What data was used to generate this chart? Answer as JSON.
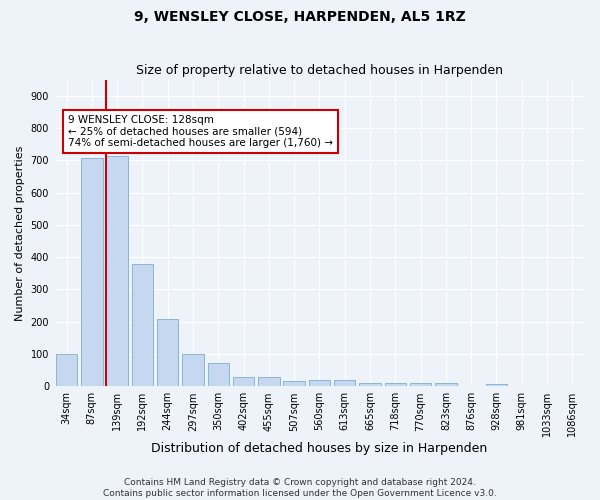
{
  "title": "9, WENSLEY CLOSE, HARPENDEN, AL5 1RZ",
  "subtitle": "Size of property relative to detached houses in Harpenden",
  "xlabel": "Distribution of detached houses by size in Harpenden",
  "ylabel": "Number of detached properties",
  "bar_labels": [
    "34sqm",
    "87sqm",
    "139sqm",
    "192sqm",
    "244sqm",
    "297sqm",
    "350sqm",
    "402sqm",
    "455sqm",
    "507sqm",
    "560sqm",
    "613sqm",
    "665sqm",
    "718sqm",
    "770sqm",
    "823sqm",
    "876sqm",
    "928sqm",
    "981sqm",
    "1033sqm",
    "1086sqm"
  ],
  "bar_values": [
    100,
    707,
    712,
    378,
    207,
    100,
    73,
    30,
    30,
    18,
    20,
    20,
    10,
    10,
    10,
    10,
    0,
    8,
    0,
    0,
    0
  ],
  "bar_color": "#c5d8f0",
  "bar_edgecolor": "#7bafd4",
  "highlight_color": "#cc0000",
  "vline_bar_index": 2,
  "annotation_text": "9 WENSLEY CLOSE: 128sqm\n← 25% of detached houses are smaller (594)\n74% of semi-detached houses are larger (1,760) →",
  "ylim": [
    0,
    950
  ],
  "yticks": [
    0,
    100,
    200,
    300,
    400,
    500,
    600,
    700,
    800,
    900
  ],
  "footer": "Contains HM Land Registry data © Crown copyright and database right 2024.\nContains public sector information licensed under the Open Government Licence v3.0.",
  "background_color": "#eef2f9",
  "grid_color": "#ffffff",
  "title_fontsize": 10,
  "subtitle_fontsize": 9,
  "xlabel_fontsize": 9,
  "ylabel_fontsize": 8,
  "tick_fontsize": 7,
  "ann_fontsize": 7.5,
  "footer_fontsize": 6.5
}
